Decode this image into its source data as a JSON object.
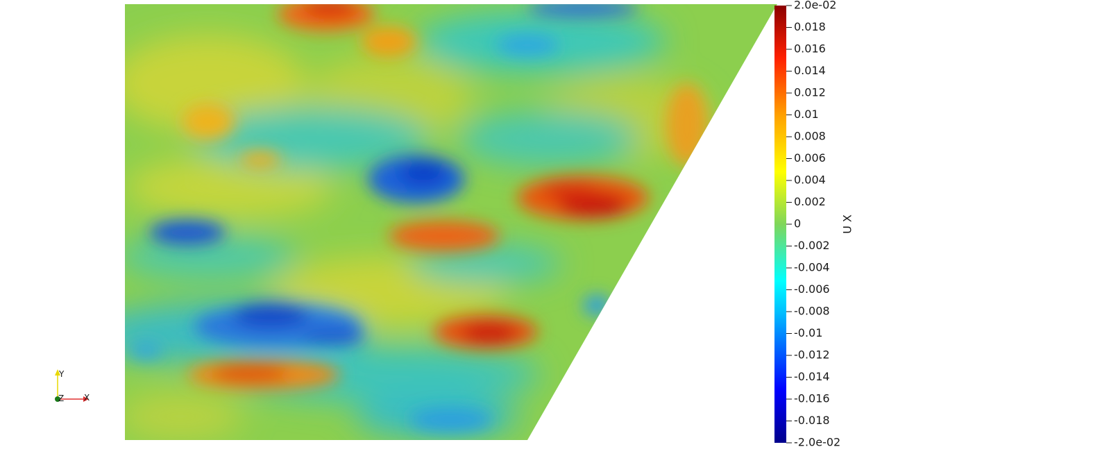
{
  "scalar_bar": {
    "title": "U X",
    "range": [
      -0.02,
      0.02
    ],
    "ticks": [
      {
        "value": 0.02,
        "label": "2.0e-02"
      },
      {
        "value": 0.018,
        "label": "0.018"
      },
      {
        "value": 0.016,
        "label": "0.016"
      },
      {
        "value": 0.014,
        "label": "0.014"
      },
      {
        "value": 0.012,
        "label": "0.012"
      },
      {
        "value": 0.01,
        "label": "0.01"
      },
      {
        "value": 0.008,
        "label": "0.008"
      },
      {
        "value": 0.006,
        "label": "0.006"
      },
      {
        "value": 0.004,
        "label": "0.004"
      },
      {
        "value": 0.002,
        "label": "0.002"
      },
      {
        "value": 0,
        "label": "0"
      },
      {
        "value": -0.002,
        "label": "-0.002"
      },
      {
        "value": -0.004,
        "label": "-0.004"
      },
      {
        "value": -0.006,
        "label": "-0.006"
      },
      {
        "value": -0.008,
        "label": "-0.008"
      },
      {
        "value": -0.01,
        "label": "-0.01"
      },
      {
        "value": -0.012,
        "label": "-0.012"
      },
      {
        "value": -0.014,
        "label": "-0.014"
      },
      {
        "value": -0.016,
        "label": "-0.016"
      },
      {
        "value": -0.018,
        "label": "-0.018"
      },
      {
        "value": -0.02,
        "label": "-2.0e-02"
      }
    ],
    "colormap": [
      "#00008b",
      "#0000ff",
      "#00c0ff",
      "#00e5e5",
      "#7fd65a",
      "#ffff00",
      "#ffa500",
      "#ff3000",
      "#8b0000"
    ]
  },
  "orientation_axes": {
    "x_label": "X",
    "y_label": "Y",
    "z_label": "Z",
    "x_color": "#e03030",
    "y_color": "#e8d800",
    "z_color": "#1a7a1a"
  },
  "field": {
    "background_value": 0.001
  }
}
